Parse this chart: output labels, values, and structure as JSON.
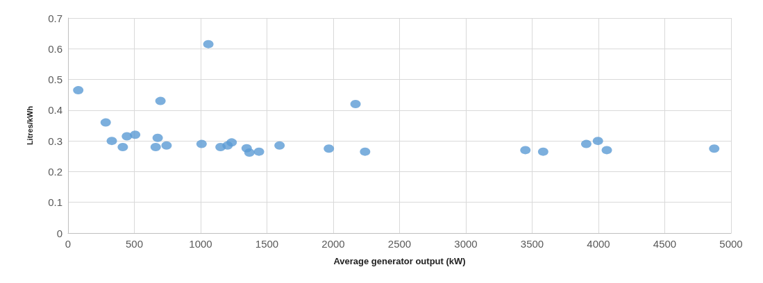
{
  "chart_data": {
    "type": "scatter",
    "xlabel": "Average generator output (kW)",
    "ylabel": "Litres/kWh",
    "x": [
      77,
      284,
      330,
      413,
      444,
      506,
      661,
      676,
      697,
      743,
      1007,
      1058,
      1150,
      1203,
      1234,
      1347,
      1368,
      1440,
      1595,
      1967,
      2168,
      2240,
      3449,
      3583,
      3908,
      3996,
      4063,
      4873
    ],
    "values": [
      0.465,
      0.36,
      0.3,
      0.28,
      0.315,
      0.32,
      0.28,
      0.31,
      0.43,
      0.285,
      0.29,
      0.615,
      0.28,
      0.285,
      0.295,
      0.276,
      0.262,
      0.265,
      0.285,
      0.275,
      0.42,
      0.265,
      0.27,
      0.265,
      0.29,
      0.3,
      0.27,
      0.275
    ],
    "color": "#5b9bd5",
    "marker": "circle",
    "grid": true,
    "xlim": [
      0,
      5000
    ],
    "xticks": [
      0,
      500,
      1000,
      1500,
      2000,
      2500,
      3000,
      3500,
      4000,
      4500,
      5000
    ],
    "ylim": [
      0,
      0.7
    ],
    "yticks": [
      0,
      0.1,
      0.2,
      0.3,
      0.4,
      0.5,
      0.6,
      0.7
    ]
  }
}
